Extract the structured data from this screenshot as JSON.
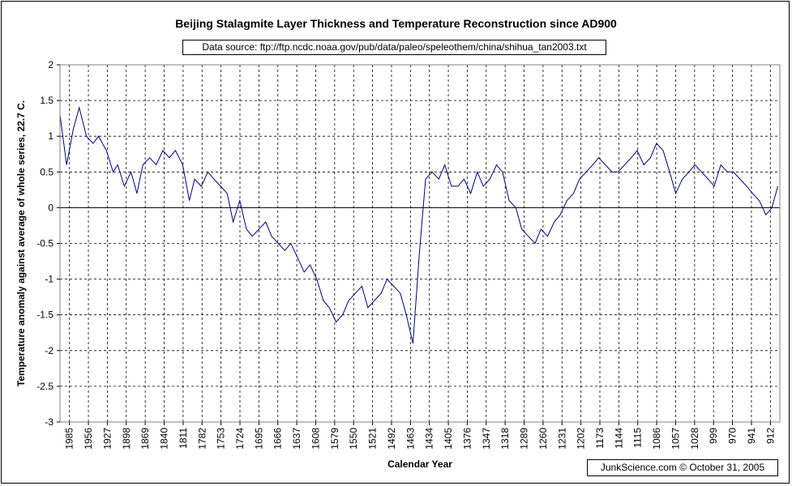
{
  "title": "Beijing Stalagmite Layer Thickness and Temperature Reconstruction since AD900",
  "source_note": "Data source: ftp://ftp.ncdc.noaa.gov/pub/data/paleo/speleothem/china/shihua_tan2003.txt",
  "credit": "JunkScience.com ©  October 31, 2005",
  "colors": {
    "series": "#000080",
    "grid": "#000000",
    "zero_line": "#000000"
  },
  "chart_data": {
    "type": "line",
    "title": "Beijing Stalagmite Layer Thickness and Temperature Reconstruction since AD900",
    "xlabel": "Calendar Year",
    "ylabel": "Temperature anomaly against average of whole series, 22.7 C.",
    "ylim": [
      -3,
      2
    ],
    "yticks": [
      2,
      1.5,
      1,
      0.5,
      0,
      -0.5,
      -1,
      -1.5,
      -2,
      -2.5,
      -3
    ],
    "xlim": [
      1985,
      900
    ],
    "x_reversed": true,
    "xticks": [
      "1985",
      "1956",
      "1927",
      "1898",
      "1869",
      "1840",
      "1811",
      "1782",
      "1753",
      "1724",
      "1695",
      "1666",
      "1637",
      "1608",
      "1579",
      "1550",
      "1521",
      "1492",
      "1463",
      "1434",
      "1405",
      "1376",
      "1347",
      "1318",
      "1289",
      "1260",
      "1231",
      "1202",
      "1173",
      "1144",
      "1115",
      "1086",
      "1057",
      "1028",
      "999",
      "970",
      "941",
      "912"
    ],
    "grid": "dashed vertical and horizontal",
    "series": [
      {
        "x": [
          1985,
          1975,
          1965,
          1956,
          1945,
          1935,
          1927,
          1915,
          1905,
          1898,
          1888,
          1878,
          1869,
          1860,
          1850,
          1840,
          1830,
          1820,
          1811,
          1800,
          1790,
          1782,
          1772,
          1762,
          1753,
          1743,
          1733,
          1724,
          1714,
          1704,
          1695,
          1685,
          1675,
          1666,
          1656,
          1646,
          1637,
          1627,
          1617,
          1608,
          1598,
          1588,
          1579,
          1569,
          1559,
          1550,
          1540,
          1530,
          1521,
          1511,
          1501,
          1492,
          1482,
          1472,
          1463,
          1453,
          1443,
          1434,
          1424,
          1414,
          1405,
          1395,
          1385,
          1376,
          1366,
          1356,
          1347,
          1337,
          1327,
          1318,
          1308,
          1298,
          1289,
          1279,
          1269,
          1260,
          1250,
          1240,
          1231,
          1221,
          1211,
          1202,
          1192,
          1182,
          1173,
          1163,
          1153,
          1144,
          1134,
          1124,
          1115,
          1105,
          1095,
          1086,
          1076,
          1066,
          1057,
          1047,
          1037,
          1028,
          1018,
          1008,
          999,
          989,
          979,
          970,
          960,
          950,
          941,
          931,
          921,
          912,
          903
        ],
        "values": [
          1.3,
          0.6,
          1.1,
          1.4,
          1.0,
          0.9,
          1.0,
          0.8,
          0.5,
          0.6,
          0.3,
          0.5,
          0.2,
          0.6,
          0.7,
          0.6,
          0.8,
          0.7,
          0.8,
          0.6,
          0.1,
          0.4,
          0.3,
          0.5,
          0.4,
          0.3,
          0.2,
          -0.2,
          0.1,
          -0.3,
          -0.4,
          -0.3,
          -0.2,
          -0.4,
          -0.5,
          -0.6,
          -0.5,
          -0.7,
          -0.9,
          -0.8,
          -1.0,
          -1.3,
          -1.4,
          -1.6,
          -1.5,
          -1.3,
          -1.2,
          -1.1,
          -1.4,
          -1.3,
          -1.2,
          -1.0,
          -1.1,
          -1.2,
          -1.5,
          -1.9,
          -0.6,
          0.4,
          0.5,
          0.4,
          0.6,
          0.3,
          0.3,
          0.4,
          0.2,
          0.5,
          0.3,
          0.4,
          0.6,
          0.5,
          0.1,
          0.0,
          -0.3,
          -0.4,
          -0.5,
          -0.3,
          -0.4,
          -0.2,
          -0.1,
          0.1,
          0.2,
          0.4,
          0.5,
          0.6,
          0.7,
          0.6,
          0.5,
          0.5,
          0.6,
          0.7,
          0.8,
          0.6,
          0.7,
          0.9,
          0.8,
          0.5,
          0.2,
          0.4,
          0.5,
          0.6,
          0.5,
          0.4,
          0.3,
          0.6,
          0.5,
          0.5,
          0.4,
          0.3,
          0.2,
          0.1,
          -0.1,
          0.0,
          0.3
        ]
      }
    ]
  }
}
